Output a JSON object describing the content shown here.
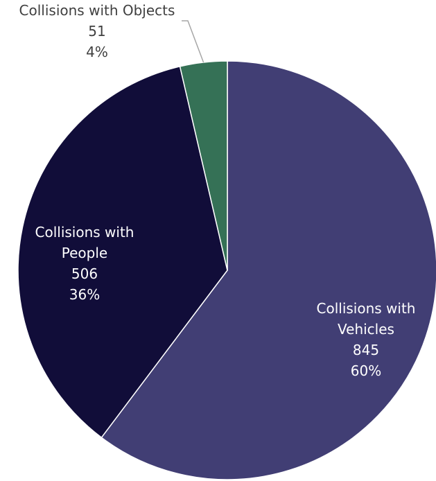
{
  "chart_data": {
    "type": "pie",
    "title": "",
    "legend": "none",
    "slices": [
      {
        "label_lines": [
          "Collisions with",
          "Vehicles"
        ],
        "value": 845,
        "value_label": "845",
        "percent": 60,
        "percent_label": "60%",
        "color": "#413e74",
        "label_color": "#ffffff"
      },
      {
        "label_lines": [
          "Collisions with",
          "People"
        ],
        "value": 506,
        "value_label": "506",
        "percent": 36,
        "percent_label": "36%",
        "color": "#110d39",
        "label_color": "#ffffff"
      },
      {
        "label_lines": [
          "Collisions with Objects"
        ],
        "value": 51,
        "value_label": "51",
        "percent": 4,
        "percent_label": "4%",
        "color": "#357156",
        "label_color": "#404040",
        "callout": true
      }
    ],
    "slice_border_color": "#ffffff",
    "leader_line_color": "#a6a6a6"
  }
}
